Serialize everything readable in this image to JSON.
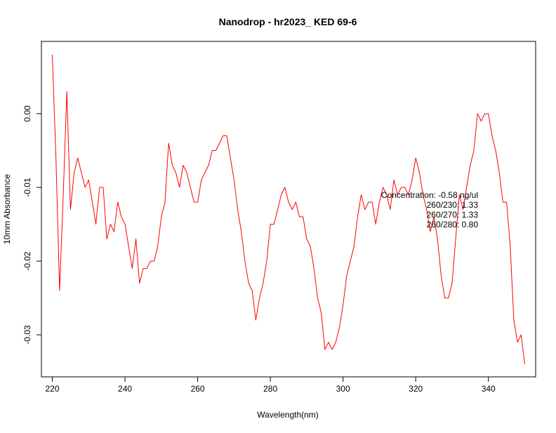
{
  "chart_data": {
    "type": "line",
    "title": "Nanodrop - hr2023_ KED 69-6",
    "xlabel": "Wavelength(nm)",
    "ylabel": "10mm Absorbance",
    "xlim": [
      217,
      353
    ],
    "ylim": [
      -0.0357,
      0.0098
    ],
    "xticks": [
      220,
      240,
      260,
      280,
      300,
      320,
      340
    ],
    "xtick_labels": [
      "220",
      "240",
      "260",
      "280",
      "300",
      "320",
      "340"
    ],
    "yticks": [
      0.0,
      -0.01,
      -0.02,
      -0.03
    ],
    "ytick_labels": [
      "0.00",
      "-0.01",
      "-0.02",
      "-0.03"
    ],
    "grid": false,
    "legend": "none",
    "annotations": [
      "Concentration: -0.58 ng/ul",
      "260/230: 1.33",
      "260/270: 1.33",
      "260/280: 0.80"
    ],
    "series": [
      {
        "color": "#ff0000",
        "x": [
          220,
          221,
          222,
          223,
          224,
          225,
          226,
          227,
          228,
          229,
          230,
          231,
          232,
          233,
          234,
          235,
          236,
          237,
          238,
          239,
          240,
          241,
          242,
          243,
          244,
          245,
          246,
          247,
          248,
          249,
          250,
          251,
          252,
          253,
          254,
          255,
          256,
          257,
          258,
          259,
          260,
          261,
          262,
          263,
          264,
          265,
          266,
          267,
          268,
          269,
          270,
          271,
          272,
          273,
          274,
          275,
          276,
          277,
          278,
          279,
          280,
          281,
          282,
          283,
          284,
          285,
          286,
          287,
          288,
          289,
          290,
          291,
          292,
          293,
          294,
          295,
          296,
          297,
          298,
          299,
          300,
          301,
          302,
          303,
          304,
          305,
          306,
          307,
          308,
          309,
          310,
          311,
          312,
          313,
          314,
          315,
          316,
          317,
          318,
          319,
          320,
          321,
          322,
          323,
          324,
          325,
          326,
          327,
          328,
          329,
          330,
          331,
          332,
          333,
          334,
          335,
          336,
          337,
          338,
          339,
          340,
          341,
          342,
          343,
          344,
          345,
          346,
          347,
          348,
          349,
          350
        ],
        "y": [
          0.008,
          -0.006,
          -0.024,
          -0.011,
          0.003,
          -0.013,
          -0.008,
          -0.006,
          -0.008,
          -0.01,
          -0.009,
          -0.012,
          -0.015,
          -0.01,
          -0.01,
          -0.017,
          -0.015,
          -0.016,
          -0.012,
          -0.014,
          -0.015,
          -0.018,
          -0.021,
          -0.017,
          -0.023,
          -0.021,
          -0.021,
          -0.02,
          -0.02,
          -0.018,
          -0.014,
          -0.012,
          -0.004,
          -0.007,
          -0.008,
          -0.01,
          -0.007,
          -0.008,
          -0.01,
          -0.012,
          -0.012,
          -0.009,
          -0.008,
          -0.007,
          -0.005,
          -0.005,
          -0.004,
          -0.003,
          -0.003,
          -0.006,
          -0.009,
          -0.013,
          -0.016,
          -0.02,
          -0.023,
          -0.024,
          -0.028,
          -0.025,
          -0.023,
          -0.02,
          -0.015,
          -0.015,
          -0.013,
          -0.011,
          -0.01,
          -0.012,
          -0.013,
          -0.012,
          -0.014,
          -0.014,
          -0.017,
          -0.018,
          -0.021,
          -0.025,
          -0.027,
          -0.032,
          -0.031,
          -0.032,
          -0.031,
          -0.029,
          -0.026,
          -0.022,
          -0.02,
          -0.018,
          -0.014,
          -0.011,
          -0.013,
          -0.012,
          -0.012,
          -0.015,
          -0.012,
          -0.01,
          -0.011,
          -0.013,
          -0.009,
          -0.011,
          -0.01,
          -0.01,
          -0.011,
          -0.009,
          -0.006,
          -0.008,
          -0.011,
          -0.013,
          -0.016,
          -0.014,
          -0.017,
          -0.022,
          -0.025,
          -0.025,
          -0.023,
          -0.017,
          -0.011,
          -0.013,
          -0.01,
          -0.007,
          -0.005,
          0.0,
          -0.001,
          0.0,
          0.0,
          -0.003,
          -0.005,
          -0.008,
          -0.012,
          -0.012,
          -0.018,
          -0.028,
          -0.031,
          -0.03,
          -0.034
        ]
      }
    ]
  }
}
